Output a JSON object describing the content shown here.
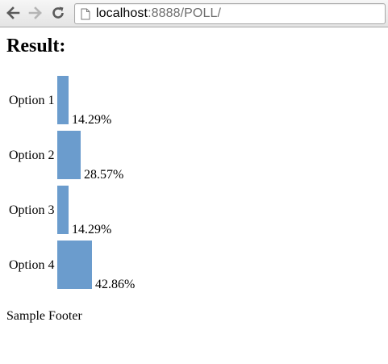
{
  "browser": {
    "url_host": "localhost",
    "url_rest": ":8888/POLL/"
  },
  "page": {
    "title": "Result:",
    "footer": "Sample Footer"
  },
  "chart_data": {
    "type": "bar",
    "categories": [
      "Option 1",
      "Option 2",
      "Option 3",
      "Option 4"
    ],
    "values": [
      14.29,
      28.57,
      14.29,
      42.86
    ],
    "value_labels": [
      "14.29%",
      "28.57%",
      "14.29%",
      "42.86%"
    ],
    "bar_color": "#6b9ccd"
  },
  "icons": {
    "back": "back-arrow-icon",
    "forward": "forward-arrow-icon",
    "reload": "reload-icon",
    "page": "page-icon"
  }
}
